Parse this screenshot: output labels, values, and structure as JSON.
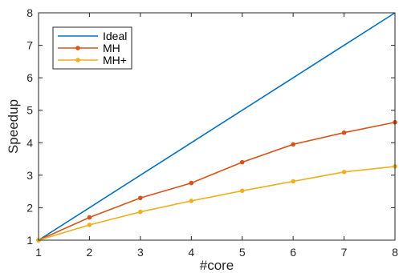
{
  "chart_data": {
    "type": "line",
    "xlabel": "#core",
    "ylabel": "Speedup",
    "xlim": [
      1,
      8
    ],
    "ylim": [
      1,
      8
    ],
    "xticks": [
      1,
      2,
      3,
      4,
      5,
      6,
      7,
      8
    ],
    "yticks": [
      1,
      2,
      3,
      4,
      5,
      6,
      7,
      8
    ],
    "grid": false,
    "legend_position": "top-left",
    "x": [
      1,
      2,
      3,
      4,
      5,
      6,
      7,
      8
    ],
    "series": [
      {
        "name": "Ideal",
        "color": "#0072BD",
        "marker": false,
        "values": [
          1,
          2,
          3,
          4,
          5,
          6,
          7,
          8
        ]
      },
      {
        "name": "MH",
        "color": "#D95319",
        "marker": true,
        "values": [
          1,
          1.7,
          2.3,
          2.76,
          3.4,
          3.95,
          4.31,
          4.63
        ]
      },
      {
        "name": "MH+",
        "color": "#EDB120",
        "marker": true,
        "values": [
          1,
          1.47,
          1.87,
          2.21,
          2.52,
          2.81,
          3.1,
          3.27
        ]
      }
    ]
  }
}
